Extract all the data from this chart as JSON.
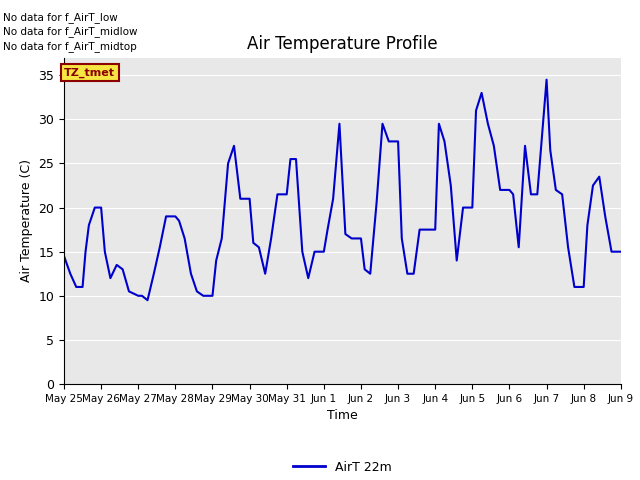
{
  "title": "Air Temperature Profile",
  "xlabel": "Time",
  "ylabel": "Air Temperature (C)",
  "legend_label": "AirT 22m",
  "ylim": [
    0,
    37
  ],
  "yticks": [
    0,
    5,
    10,
    15,
    20,
    25,
    30,
    35
  ],
  "line_color": "#0000cc",
  "line_width": 1.5,
  "no_data_texts": [
    "No data for f_AirT_low",
    "No data for f_AirT_midlow",
    "No data for f_AirT_midtop"
  ],
  "tz_tmet_label": "TZ_tmet",
  "x_tick_labels": [
    "May 25",
    "May 26",
    "May 27",
    "May 28",
    "May 29",
    "May 30",
    "May 31",
    "Jun 1",
    "Jun 2",
    "Jun 3",
    "Jun 4",
    "Jun 5",
    "Jun 6",
    "Jun 7",
    "Jun 8",
    "Jun 9"
  ],
  "x_data": [
    0.0,
    0.17,
    0.33,
    0.5,
    0.58,
    0.67,
    0.83,
    1.0,
    1.1,
    1.25,
    1.42,
    1.58,
    1.75,
    2.0,
    2.1,
    2.25,
    2.42,
    2.58,
    2.75,
    3.0,
    3.1,
    3.25,
    3.42,
    3.58,
    3.75,
    4.0,
    4.1,
    4.25,
    4.42,
    4.58,
    4.75,
    5.0,
    5.1,
    5.25,
    5.42,
    5.58,
    5.75,
    6.0,
    6.1,
    6.25,
    6.42,
    6.58,
    6.75,
    7.0,
    7.1,
    7.25,
    7.42,
    7.58,
    7.75,
    8.0,
    8.1,
    8.25,
    8.42,
    8.58,
    8.75,
    9.0,
    9.1,
    9.25,
    9.42,
    9.58,
    9.75,
    10.0,
    10.1,
    10.25,
    10.42,
    10.58,
    10.75,
    11.0,
    11.1,
    11.25,
    11.42,
    11.58,
    11.75,
    12.0,
    12.1,
    12.25,
    12.42,
    12.58,
    12.75,
    13.0,
    13.1,
    13.25,
    13.42,
    13.58,
    13.75,
    14.0,
    14.1,
    14.25,
    14.42,
    14.58,
    14.75,
    15.0
  ],
  "y_data": [
    14.5,
    12.5,
    11.0,
    11.0,
    15.0,
    18.0,
    20.0,
    20.0,
    15.0,
    12.0,
    13.5,
    13.0,
    10.5,
    10.0,
    10.0,
    9.5,
    12.5,
    15.5,
    19.0,
    19.0,
    18.5,
    16.5,
    12.5,
    10.5,
    10.0,
    10.0,
    14.0,
    16.5,
    25.0,
    27.0,
    21.0,
    21.0,
    16.0,
    15.5,
    12.5,
    16.5,
    21.5,
    21.5,
    25.5,
    25.5,
    15.0,
    12.0,
    15.0,
    15.0,
    17.5,
    21.0,
    29.5,
    17.0,
    16.5,
    16.5,
    13.0,
    12.5,
    20.5,
    29.5,
    27.5,
    27.5,
    16.5,
    12.5,
    12.5,
    17.5,
    17.5,
    17.5,
    29.5,
    27.5,
    22.5,
    14.0,
    20.0,
    20.0,
    31.0,
    33.0,
    29.5,
    27.0,
    22.0,
    22.0,
    21.5,
    15.5,
    27.0,
    21.5,
    21.5,
    34.5,
    26.5,
    22.0,
    21.5,
    15.5,
    11.0,
    11.0,
    18.0,
    22.5,
    23.5,
    19.0,
    15.0,
    15.0
  ]
}
